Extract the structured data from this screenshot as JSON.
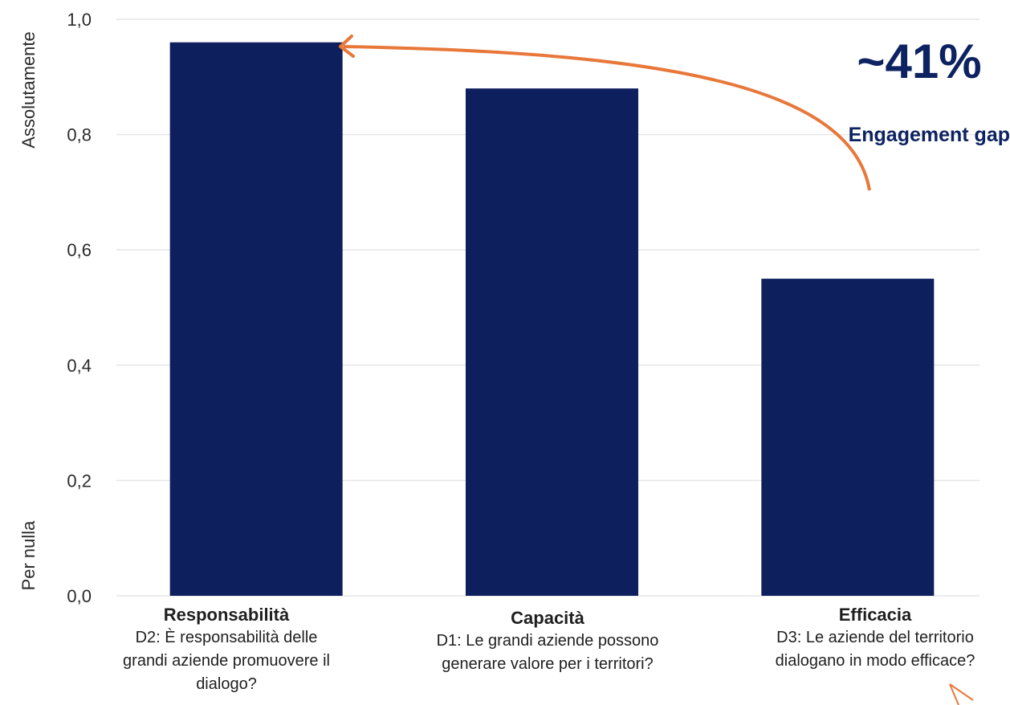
{
  "chart_data": {
    "type": "bar",
    "categories": [
      "Responsabilità",
      "Capacità",
      "Efficacia"
    ],
    "category_subtitles": [
      "D2: È responsabilità delle grandi aziende promuovere il dialogo?",
      "D1: Le grandi aziende possono generare valore per i territori?",
      "D3: Le aziende del territorio dialogano in modo efficace?"
    ],
    "values": [
      0.96,
      0.88,
      0.55
    ],
    "ylim": [
      0.0,
      1.0
    ],
    "yticks": [
      "0,0",
      "0,2",
      "0,4",
      "0,6",
      "0,8",
      "1,0"
    ],
    "ylabel_top": "Assolutamente",
    "ylabel_bottom": "Per nulla",
    "grid": true,
    "annotation": {
      "value": "~41%",
      "label": "Engagement gap",
      "from_category": "Efficacia",
      "to_category": "Responsabilità"
    },
    "colors": {
      "bar": "#0d1f5c",
      "arrow": "#e8773a",
      "annotation_text": "#0d2260",
      "grid": "#e6e6e6"
    }
  }
}
